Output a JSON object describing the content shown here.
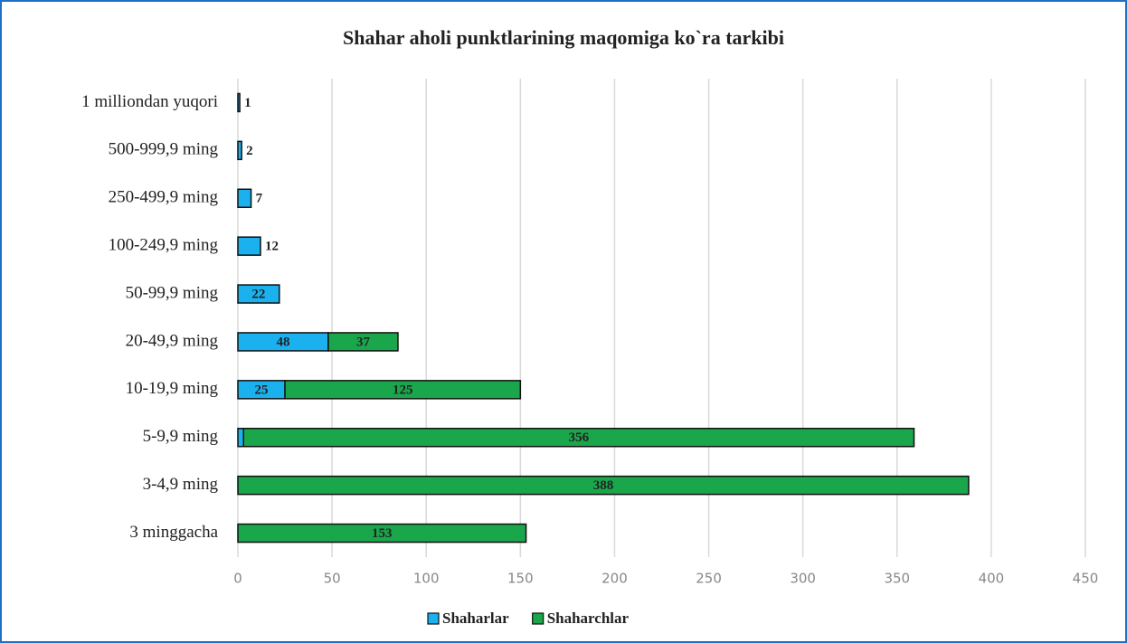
{
  "chart_data": {
    "type": "stacked_barh",
    "title": "Shahar aholi punktlarining maqomiga ko`ra tarkibi",
    "categories": [
      "1 milliondan yuqori",
      "500-999,9 ming",
      "250-499,9 ming",
      "100-249,9 ming",
      "50-99,9 ming",
      "20-49,9 ming",
      "10-19,9 ming",
      "5-9,9 ming",
      "3-4,9 ming",
      "3 minggacha"
    ],
    "series": [
      {
        "name": "Shaharlar",
        "color": "#1bb1ef",
        "values": [
          1,
          2,
          7,
          12,
          22,
          48,
          25,
          3,
          null,
          null
        ]
      },
      {
        "name": "Shaharchlar",
        "color": "#1aa64b",
        "values": [
          null,
          null,
          null,
          null,
          null,
          37,
          125,
          356,
          388,
          153
        ]
      }
    ],
    "xlim": [
      0,
      450
    ],
    "xticks": [
      0,
      50,
      100,
      150,
      200,
      250,
      300,
      350,
      400,
      450
    ],
    "grid": true,
    "legend": "bottom"
  }
}
